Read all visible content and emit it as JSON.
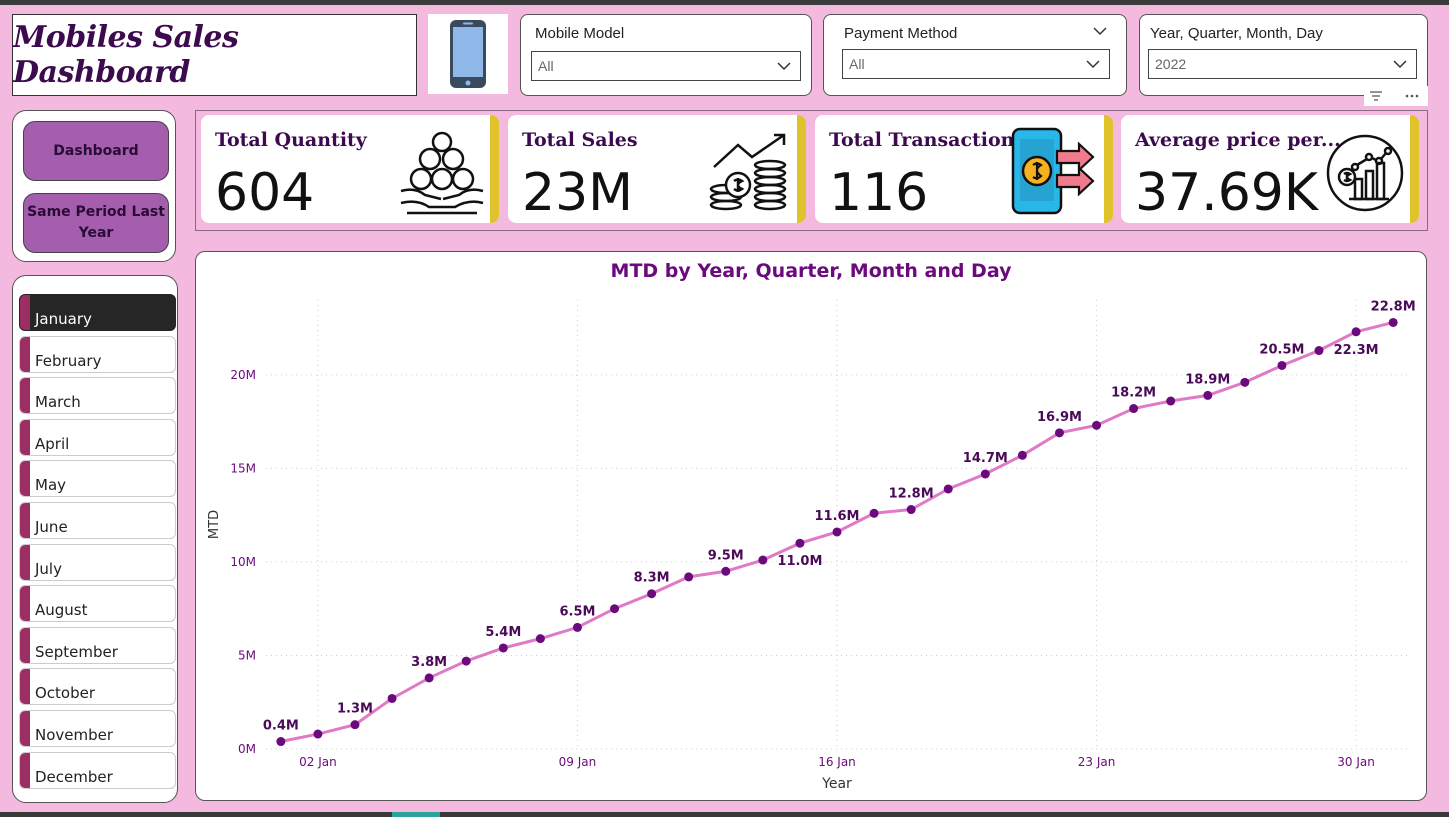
{
  "app": {
    "title": "Mobiles Sales Dashboard"
  },
  "header": {
    "phone_icon": "smartphone-icon"
  },
  "slicers": {
    "mobile_model": {
      "label": "Mobile Model",
      "value": "All"
    },
    "payment_method": {
      "label": "Payment Method",
      "value": "All"
    },
    "date": {
      "label": "Year, Quarter, Month, Day",
      "value": "2022"
    }
  },
  "nav": {
    "dashboard": "Dashboard",
    "same_period": "Same Period Last Year"
  },
  "months": [
    "January",
    "February",
    "March",
    "April",
    "May",
    "June",
    "July",
    "August",
    "September",
    "October",
    "November",
    "December"
  ],
  "selected_month": "January",
  "kpis": [
    {
      "label": "Total Quantity",
      "value": "604",
      "icon": "hands-coins-icon"
    },
    {
      "label": "Total Sales",
      "value": "23M",
      "icon": "growth-coins-icon"
    },
    {
      "label": "Total Transactions",
      "value": "116",
      "icon": "mobile-payment-icon"
    },
    {
      "label": "Average price per...",
      "value": "37.69K",
      "icon": "analytics-chart-icon"
    }
  ],
  "colors": {
    "background": "#f3b9df",
    "accent": "#e0c22a",
    "line": "#e07ac7",
    "marker": "#6b0a7c",
    "title": "#6b0a7c"
  },
  "chart_data": {
    "type": "line",
    "title": "MTD by Year, Quarter, Month and Day",
    "xlabel": "Year",
    "ylabel": "MTD",
    "x_tick_labels": [
      "02 Jan",
      "09 Jan",
      "16 Jan",
      "23 Jan",
      "30 Jan"
    ],
    "x_tick_days": [
      2,
      9,
      16,
      23,
      30
    ],
    "y_tick_labels": [
      "0M",
      "5M",
      "10M",
      "15M",
      "20M"
    ],
    "y_tick_values": [
      0,
      5,
      10,
      15,
      20
    ],
    "ylim": [
      0,
      24
    ],
    "grid": true,
    "series": [
      {
        "days": [
          1,
          2,
          3,
          4,
          5,
          6,
          7,
          8,
          9,
          10,
          11,
          12,
          13,
          14,
          15,
          16,
          17,
          18,
          19,
          20,
          21,
          22,
          23,
          24,
          25,
          26,
          27,
          28,
          29,
          30,
          31
        ],
        "values": [
          0.4,
          0.8,
          1.3,
          2.7,
          3.8,
          4.7,
          5.4,
          5.9,
          6.5,
          7.5,
          8.3,
          9.2,
          9.5,
          10.1,
          11.0,
          11.6,
          12.6,
          12.8,
          13.9,
          14.7,
          15.7,
          16.9,
          17.3,
          18.2,
          18.6,
          18.9,
          19.6,
          20.5,
          21.3,
          22.3,
          22.8
        ]
      }
    ],
    "data_labels": [
      {
        "day": 1,
        "text": "0.4M"
      },
      {
        "day": 3,
        "text": "1.3M"
      },
      {
        "day": 5,
        "text": "3.8M"
      },
      {
        "day": 7,
        "text": "5.4M"
      },
      {
        "day": 9,
        "text": "6.5M"
      },
      {
        "day": 11,
        "text": "8.3M"
      },
      {
        "day": 13,
        "text": "9.5M"
      },
      {
        "day": 15,
        "text": "11.0M",
        "below": true
      },
      {
        "day": 16,
        "text": "11.6M"
      },
      {
        "day": 18,
        "text": "12.8M"
      },
      {
        "day": 20,
        "text": "14.7M"
      },
      {
        "day": 22,
        "text": "16.9M"
      },
      {
        "day": 24,
        "text": "18.2M"
      },
      {
        "day": 26,
        "text": "18.9M"
      },
      {
        "day": 28,
        "text": "20.5M"
      },
      {
        "day": 30,
        "text": "22.3M",
        "below": true
      },
      {
        "day": 31,
        "text": "22.8M"
      }
    ]
  }
}
